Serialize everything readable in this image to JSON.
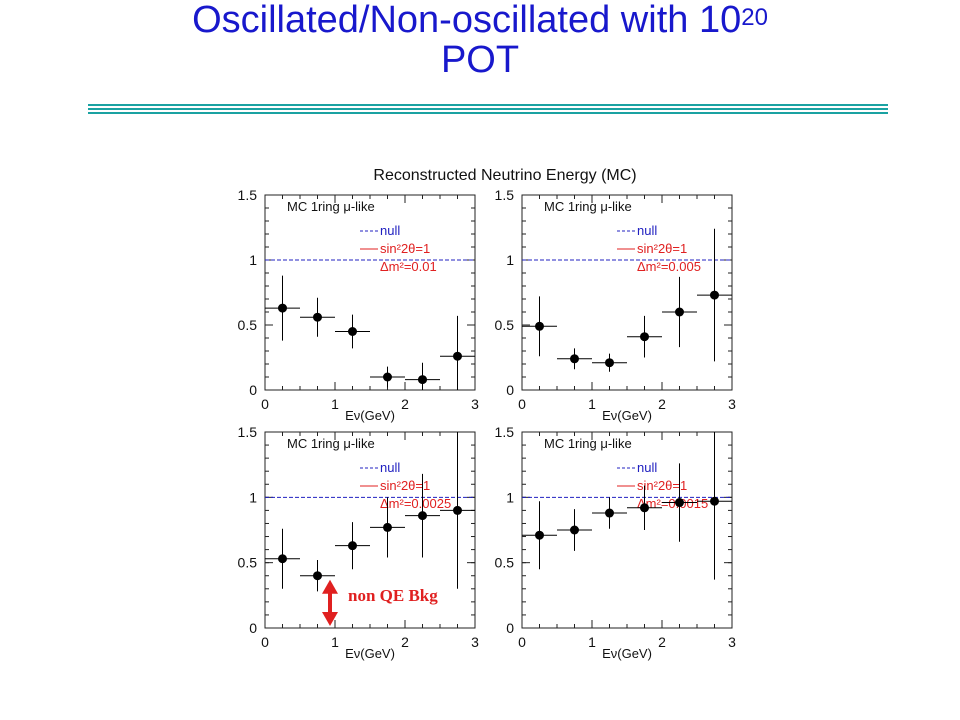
{
  "slide": {
    "title_main": "Oscillated/Non-oscillated with 10",
    "title_sup": "20",
    "title_line2": "POT"
  },
  "annotation": {
    "text": "non QE Bkg",
    "color": "#e02020"
  },
  "colors": {
    "title": "#1818cc",
    "rule": "#1aa2a2",
    "null_line": "#2020c0",
    "osc_label": "#e02020",
    "markers": "#000000"
  },
  "chart_data": {
    "type": "scatter",
    "title": "Reconstructed Neutrino Energy (MC)",
    "panels": [
      {
        "label": "MC  1ring  μ-like",
        "legend": [
          "null",
          "sin²2θ=1",
          "Δm²=0.01"
        ],
        "xlabel": "Eν(GeV)",
        "xlim": [
          0,
          3
        ],
        "ylim": [
          0,
          1.5
        ],
        "xticks": [
          0,
          1,
          2,
          3
        ],
        "yticks": [
          0,
          0.5,
          1,
          1.5
        ],
        "null_value": 1,
        "points": [
          {
            "x": 0.25,
            "y": 0.63,
            "yerr": 0.25
          },
          {
            "x": 0.75,
            "y": 0.56,
            "yerr": 0.15
          },
          {
            "x": 1.25,
            "y": 0.45,
            "yerr": 0.13
          },
          {
            "x": 1.75,
            "y": 0.1,
            "yerr": 0.08
          },
          {
            "x": 2.25,
            "y": 0.08,
            "yerr": 0.13
          },
          {
            "x": 2.75,
            "y": 0.26,
            "yerr": 0.31
          }
        ]
      },
      {
        "label": "MC  1ring  μ-like",
        "legend": [
          "null",
          "sin²2θ=1",
          "Δm²=0.005"
        ],
        "xlabel": "Eν(GeV)",
        "xlim": [
          0,
          3
        ],
        "ylim": [
          0,
          1.5
        ],
        "xticks": [
          0,
          1,
          2,
          3
        ],
        "yticks": [
          0,
          0.5,
          1,
          1.5
        ],
        "null_value": 1,
        "points": [
          {
            "x": 0.25,
            "y": 0.49,
            "yerr": 0.23
          },
          {
            "x": 0.75,
            "y": 0.24,
            "yerr": 0.08
          },
          {
            "x": 1.25,
            "y": 0.21,
            "yerr": 0.07
          },
          {
            "x": 1.75,
            "y": 0.41,
            "yerr": 0.16
          },
          {
            "x": 2.25,
            "y": 0.6,
            "yerr": 0.27
          },
          {
            "x": 2.75,
            "y": 0.73,
            "yerr": 0.51
          }
        ]
      },
      {
        "label": "MC  1ring  μ-like",
        "legend": [
          "null",
          "sin²2θ=1",
          "Δm²=0.0025"
        ],
        "xlabel": "Eν(GeV)",
        "xlim": [
          0,
          3
        ],
        "ylim": [
          0,
          1.5
        ],
        "xticks": [
          0,
          1,
          2,
          3
        ],
        "yticks": [
          0,
          0.5,
          1,
          1.5
        ],
        "null_value": 1,
        "points": [
          {
            "x": 0.25,
            "y": 0.53,
            "yerr": 0.23
          },
          {
            "x": 0.75,
            "y": 0.4,
            "yerr": 0.12
          },
          {
            "x": 1.25,
            "y": 0.63,
            "yerr": 0.18
          },
          {
            "x": 1.75,
            "y": 0.77,
            "yerr": 0.23
          },
          {
            "x": 2.25,
            "y": 0.86,
            "yerr": 0.32
          },
          {
            "x": 2.75,
            "y": 0.9,
            "yerr": 0.6
          }
        ]
      },
      {
        "label": "MC  1ring  μ-like",
        "legend": [
          "null",
          "sin²2θ=1",
          "Δm²=0.0015"
        ],
        "xlabel": "Eν(GeV)",
        "xlim": [
          0,
          3
        ],
        "ylim": [
          0,
          1.5
        ],
        "xticks": [
          0,
          1,
          2,
          3
        ],
        "yticks": [
          0,
          0.5,
          1,
          1.5
        ],
        "null_value": 1,
        "points": [
          {
            "x": 0.25,
            "y": 0.71,
            "yerr": 0.26
          },
          {
            "x": 0.75,
            "y": 0.75,
            "yerr": 0.16
          },
          {
            "x": 1.25,
            "y": 0.88,
            "yerr": 0.12
          },
          {
            "x": 1.75,
            "y": 0.92,
            "yerr": 0.17
          },
          {
            "x": 2.25,
            "y": 0.96,
            "yerr": 0.3
          },
          {
            "x": 2.75,
            "y": 0.97,
            "yerr": 0.6
          }
        ]
      }
    ]
  }
}
